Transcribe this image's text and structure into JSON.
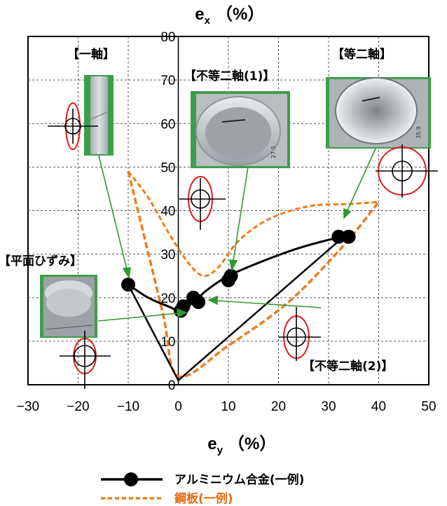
{
  "chart_data": {
    "type": "line",
    "x_title": "e",
    "x_title_sub": "y",
    "y_title": "e",
    "y_title_sub": "x",
    "unit_label": "（%）",
    "xlim": [
      -30,
      50
    ],
    "ylim": [
      0,
      80
    ],
    "x_ticks": [
      "−30",
      "−20",
      "−10",
      "0",
      "10",
      "20",
      "30",
      "40",
      "50"
    ],
    "y_ticks": [
      "0",
      "10",
      "20",
      "30",
      "40",
      "50",
      "60",
      "70",
      "80"
    ],
    "grid": true,
    "series": [
      {
        "name": "アルミニウム合金(一例)",
        "color": "#000000",
        "markers": [
          [
            -10,
            23
          ],
          [
            0.5,
            17
          ],
          [
            1,
            18
          ],
          [
            3,
            20
          ],
          [
            4,
            19
          ],
          [
            10,
            24
          ],
          [
            10.5,
            25
          ],
          [
            32,
            34
          ],
          [
            34,
            34
          ]
        ],
        "upper_curve": [
          [
            -10,
            23
          ],
          [
            -6,
            20
          ],
          [
            -2,
            18
          ],
          [
            0.5,
            17
          ],
          [
            3,
            19
          ],
          [
            6,
            22
          ],
          [
            10,
            25
          ],
          [
            16,
            28
          ],
          [
            23,
            31
          ],
          [
            29,
            33
          ],
          [
            33,
            34
          ]
        ],
        "lower_limit": [
          [
            -10,
            23
          ],
          [
            0,
            1
          ],
          [
            33,
            34
          ]
        ]
      },
      {
        "name": "鋼板(一例)",
        "color": "#f07c1a",
        "upper_curve": [
          [
            -10,
            49
          ],
          [
            -6,
            43
          ],
          [
            -2,
            35
          ],
          [
            2,
            28
          ],
          [
            5,
            25
          ],
          [
            8,
            27
          ],
          [
            12,
            33
          ],
          [
            18,
            38
          ],
          [
            26,
            41
          ],
          [
            34,
            41.5
          ],
          [
            40,
            42
          ]
        ],
        "lower_limit": [
          [
            -10,
            49
          ],
          [
            -7,
            35
          ],
          [
            -3,
            16
          ],
          [
            0,
            2
          ],
          [
            10,
            9
          ],
          [
            22,
            19
          ],
          [
            33,
            32
          ],
          [
            40,
            42
          ]
        ]
      }
    ],
    "legend": [
      {
        "label": "アルミニウム合金(一例)",
        "color": "#000000"
      },
      {
        "label": "鋼板(一例)",
        "color": "#e86a10"
      }
    ],
    "legend_position": "bottom-center",
    "annotations": [
      {
        "text": "【一軸】"
      },
      {
        "text": "【不等二軸(1)】"
      },
      {
        "text": "【等二軸】"
      },
      {
        "text": "【平面ひずみ】"
      },
      {
        "text": "【不等二軸(2)】"
      }
    ],
    "photo_labels": [
      "27.5",
      "35.9"
    ]
  }
}
